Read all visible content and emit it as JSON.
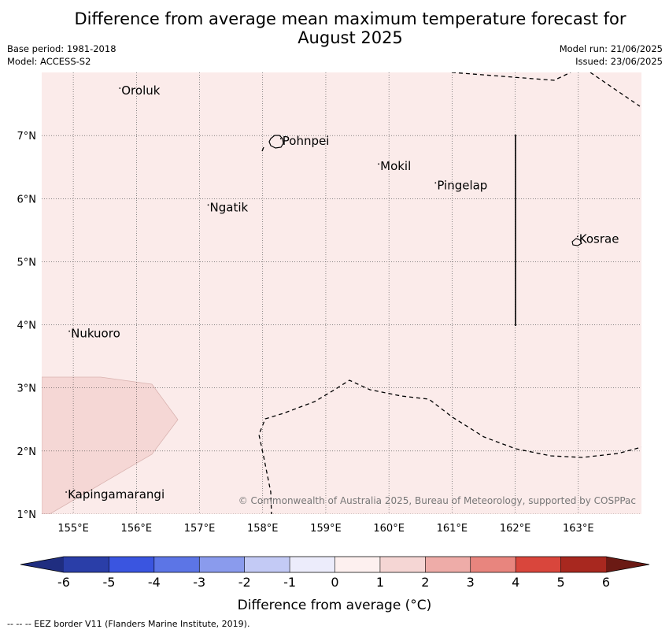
{
  "title": {
    "line1": "Difference from average mean maximum temperature forecast for",
    "line2": "August 2025"
  },
  "meta": {
    "base_period": "Base period: 1981-2018",
    "model": "Model: ACCESS-S2",
    "model_run": "Model run: 21/06/2025",
    "issued": "Issued: 23/06/2025"
  },
  "map": {
    "lon_range": [
      154.5,
      164.0
    ],
    "lat_range": [
      1.0,
      8.0
    ],
    "lon_ticks": [
      {
        "value": 155,
        "label": "155°E"
      },
      {
        "value": 156,
        "label": "156°E"
      },
      {
        "value": 157,
        "label": "157°E"
      },
      {
        "value": 158,
        "label": "158°E"
      },
      {
        "value": 159,
        "label": "159°E"
      },
      {
        "value": 160,
        "label": "160°E"
      },
      {
        "value": 161,
        "label": "161°E"
      },
      {
        "value": 162,
        "label": "162°E"
      },
      {
        "value": 163,
        "label": "163°E"
      }
    ],
    "lat_ticks": [
      {
        "value": 1,
        "label": "1°N"
      },
      {
        "value": 2,
        "label": "2°N"
      },
      {
        "value": 3,
        "label": "3°N"
      },
      {
        "value": 4,
        "label": "4°N"
      },
      {
        "value": 5,
        "label": "5°N"
      },
      {
        "value": 6,
        "label": "6°N"
      },
      {
        "value": 7,
        "label": "7°N"
      }
    ],
    "background_category": "0 to 1",
    "colors": {
      "cat_0_1": "#fbebea",
      "cat_1_2": "#f5d7d5"
    },
    "places": [
      {
        "name": "Oroluk",
        "lon": 155.75,
        "lat": 7.65
      },
      {
        "name": "Pohnpei",
        "lon": 158.3,
        "lat": 6.85
      },
      {
        "name": "Mokil",
        "lon": 159.85,
        "lat": 6.45
      },
      {
        "name": "Pingelap",
        "lon": 160.75,
        "lat": 6.15
      },
      {
        "name": "Ngatik",
        "lon": 157.15,
        "lat": 5.8
      },
      {
        "name": "Kosrae",
        "lon": 163.0,
        "lat": 5.3
      },
      {
        "name": "Nukuoro",
        "lon": 154.95,
        "lat": 3.8
      },
      {
        "name": "Kapingamarangi",
        "lon": 154.9,
        "lat": 1.25
      }
    ],
    "copyright": "© Commonwealth of Australia 2025, Bureau of Meteorology, supported by COSPPac"
  },
  "colorbar": {
    "label": "Difference from average (°C)",
    "ticks": [
      "-6",
      "-5",
      "-4",
      "-3",
      "-2",
      "-1",
      "0",
      "1",
      "2",
      "3",
      "4",
      "5",
      "6"
    ],
    "tick_values": [
      -6,
      -5,
      -4,
      -3,
      -2,
      -1,
      0,
      1,
      2,
      3,
      4,
      5,
      6
    ],
    "colors": [
      "#2a3ea8",
      "#3a55e0",
      "#5c75e6",
      "#8a9bed",
      "#c3caf5",
      "#ececfb",
      "#fdf0ef",
      "#f5d6d4",
      "#eeaca8",
      "#e8857e",
      "#d9463c",
      "#a8281f"
    ],
    "under_color": "#1f2d80",
    "over_color": "#6b1a14"
  },
  "footnote": "--  --  -- EEZ border V11 (Flanders Marine Institute, 2019)."
}
